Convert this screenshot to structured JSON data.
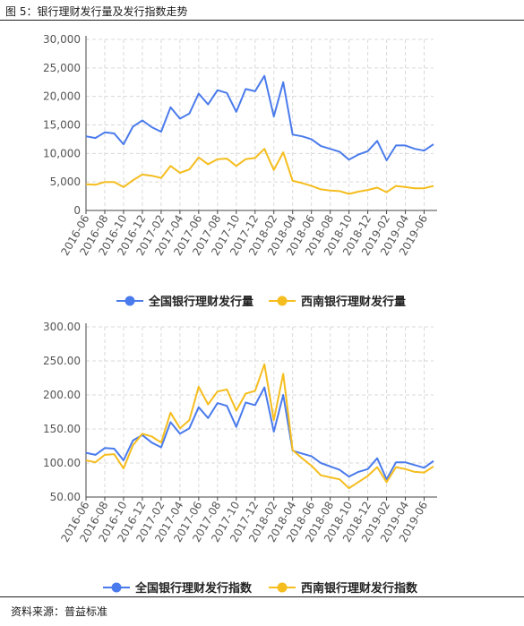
{
  "title": "图 5：银行理财发行量及发行指数走势",
  "source": "资料来源：普益标准",
  "colors": {
    "series1": "#4a7bec",
    "series2": "#f5bd1e",
    "grid": "#d9d9d9",
    "axis": "#444444"
  },
  "chart_data": [
    {
      "type": "line",
      "x": [
        "2016-06",
        "2016-07",
        "2016-08",
        "2016-09",
        "2016-10",
        "2016-11",
        "2016-12",
        "2017-01",
        "2017-02",
        "2017-03",
        "2017-04",
        "2017-05",
        "2017-06",
        "2017-07",
        "2017-08",
        "2017-09",
        "2017-10",
        "2017-11",
        "2017-12",
        "2018-01",
        "2018-02",
        "2018-03",
        "2018-04",
        "2018-05",
        "2018-06",
        "2018-07",
        "2018-08",
        "2018-09",
        "2018-10",
        "2018-11",
        "2018-12",
        "2019-01",
        "2019-02",
        "2019-03",
        "2019-04",
        "2019-05",
        "2019-06",
        "2019-07"
      ],
      "tick_labels": [
        "2016-06",
        "2016-08",
        "2016-10",
        "2016-12",
        "2017-02",
        "2017-04",
        "2017-06",
        "2017-08",
        "2017-10",
        "2017-12",
        "2018-02",
        "2018-04",
        "2018-06",
        "2018-08",
        "2018-10",
        "2018-12",
        "2019-02",
        "2019-04",
        "2019-06"
      ],
      "yticks": [
        "0",
        "5,000",
        "10,000",
        "15,000",
        "20,000",
        "25,000",
        "30,000"
      ],
      "ylim": [
        0,
        30000
      ],
      "grid": true,
      "legend": "bottom",
      "series": [
        {
          "name": "全国银行理财发行量",
          "values": [
            13000,
            12700,
            13700,
            13500,
            11600,
            14700,
            15800,
            14600,
            13800,
            18100,
            16100,
            17000,
            20500,
            18600,
            21100,
            20600,
            17300,
            21300,
            20900,
            23600,
            16500,
            22500,
            13300,
            13000,
            12500,
            11300,
            10800,
            10300,
            8900,
            9800,
            10400,
            12200,
            8800,
            11400,
            11400,
            10800,
            10500,
            11600
          ]
        },
        {
          "name": "西南银行理财发行量",
          "values": [
            4600,
            4500,
            5000,
            5000,
            4100,
            5300,
            6300,
            6100,
            5700,
            7800,
            6600,
            7200,
            9300,
            8100,
            9000,
            9100,
            7800,
            9000,
            9200,
            10800,
            7100,
            10200,
            5200,
            4800,
            4300,
            3700,
            3500,
            3400,
            2900,
            3300,
            3600,
            4000,
            3200,
            4300,
            4100,
            3900,
            3900,
            4300
          ]
        }
      ]
    },
    {
      "type": "line",
      "x": [
        "2016-06",
        "2016-07",
        "2016-08",
        "2016-09",
        "2016-10",
        "2016-11",
        "2016-12",
        "2017-01",
        "2017-02",
        "2017-03",
        "2017-04",
        "2017-05",
        "2017-06",
        "2017-07",
        "2017-08",
        "2017-09",
        "2017-10",
        "2017-11",
        "2017-12",
        "2018-01",
        "2018-02",
        "2018-03",
        "2018-04",
        "2018-05",
        "2018-06",
        "2018-07",
        "2018-08",
        "2018-09",
        "2018-10",
        "2018-11",
        "2018-12",
        "2019-01",
        "2019-02",
        "2019-03",
        "2019-04",
        "2019-05",
        "2019-06",
        "2019-07"
      ],
      "tick_labels": [
        "2016-06",
        "2016-08",
        "2016-10",
        "2016-12",
        "2017-02",
        "2017-04",
        "2017-06",
        "2017-08",
        "2017-10",
        "2017-12",
        "2018-02",
        "2018-04",
        "2018-06",
        "2018-08",
        "2018-10",
        "2018-12",
        "2019-02",
        "2019-04",
        "2019-06"
      ],
      "yticks": [
        "50.00",
        "100.00",
        "150.00",
        "200.00",
        "250.00",
        "300.00"
      ],
      "ylim": [
        50,
        300
      ],
      "grid": true,
      "legend": "bottom",
      "series": [
        {
          "name": "全国银行理财发行指数",
          "values": [
            115,
            112,
            122,
            121,
            104,
            133,
            141,
            130,
            123,
            160,
            143,
            151,
            182,
            166,
            188,
            184,
            153,
            189,
            185,
            211,
            146,
            200,
            118,
            114,
            110,
            100,
            95,
            90,
            80,
            87,
            91,
            107,
            76,
            101,
            101,
            97,
            93,
            103
          ]
        },
        {
          "name": "西南银行理财发行指数",
          "values": [
            104,
            101,
            112,
            113,
            92,
            126,
            143,
            139,
            130,
            174,
            151,
            163,
            212,
            186,
            205,
            208,
            177,
            202,
            206,
            245,
            163,
            231,
            119,
            107,
            96,
            82,
            79,
            76,
            63,
            72,
            81,
            94,
            72,
            94,
            91,
            87,
            86,
            95
          ]
        }
      ]
    }
  ]
}
